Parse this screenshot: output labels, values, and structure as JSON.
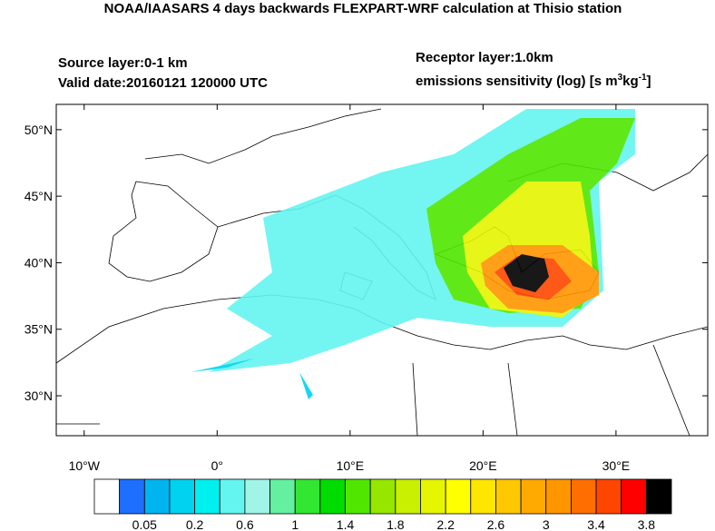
{
  "header": {
    "title": "NOAA/IAASARS 4 days backwards FLEXPART-WRF calculation at Thisio station",
    "source_layer": "Source layer:0-1 km",
    "valid_date": "Valid date:20160121 120000 UTC",
    "receptor_layer": "Receptor layer:1.0km",
    "units": {
      "text": "emissions sensitivity (log) [s m",
      "sup1": "3",
      "mid": "kg",
      "sup2": "-1",
      "end": "]"
    }
  },
  "map": {
    "lon_range": [
      -12.1,
      36.9
    ],
    "lat_range": [
      27.0,
      51.9
    ],
    "lat_ticks": [
      {
        "value": 50,
        "label": "50°N"
      },
      {
        "value": 45,
        "label": "45°N"
      },
      {
        "value": 40,
        "label": "40°N"
      },
      {
        "value": 35,
        "label": "35°N"
      },
      {
        "value": 30,
        "label": "30°N"
      }
    ],
    "lon_ticks": [
      {
        "value": -10,
        "label": "10°W"
      },
      {
        "value": 0,
        "label": "0°"
      },
      {
        "value": 10,
        "label": "10°E"
      },
      {
        "value": 20,
        "label": "20°E"
      },
      {
        "value": 30,
        "label": "30°E"
      }
    ]
  },
  "colorbar": {
    "colors": [
      "#ffffff",
      "#1e6eff",
      "#00b4f0",
      "#00d2f0",
      "#00f0f0",
      "#64f5f0",
      "#a0f5e6",
      "#64f0a0",
      "#32e632",
      "#00dc00",
      "#50e600",
      "#96e600",
      "#c8f000",
      "#e6f500",
      "#ffff00",
      "#ffe600",
      "#ffc800",
      "#ffaa00",
      "#ff9600",
      "#ff6e00",
      "#ff4600",
      "#ff0000",
      "#000000"
    ],
    "labels": [
      "0.05",
      "0.2",
      "0.6",
      "1",
      "1.4",
      "1.8",
      "2.2",
      "2.6",
      "3",
      "3.4",
      "3.8"
    ]
  }
}
